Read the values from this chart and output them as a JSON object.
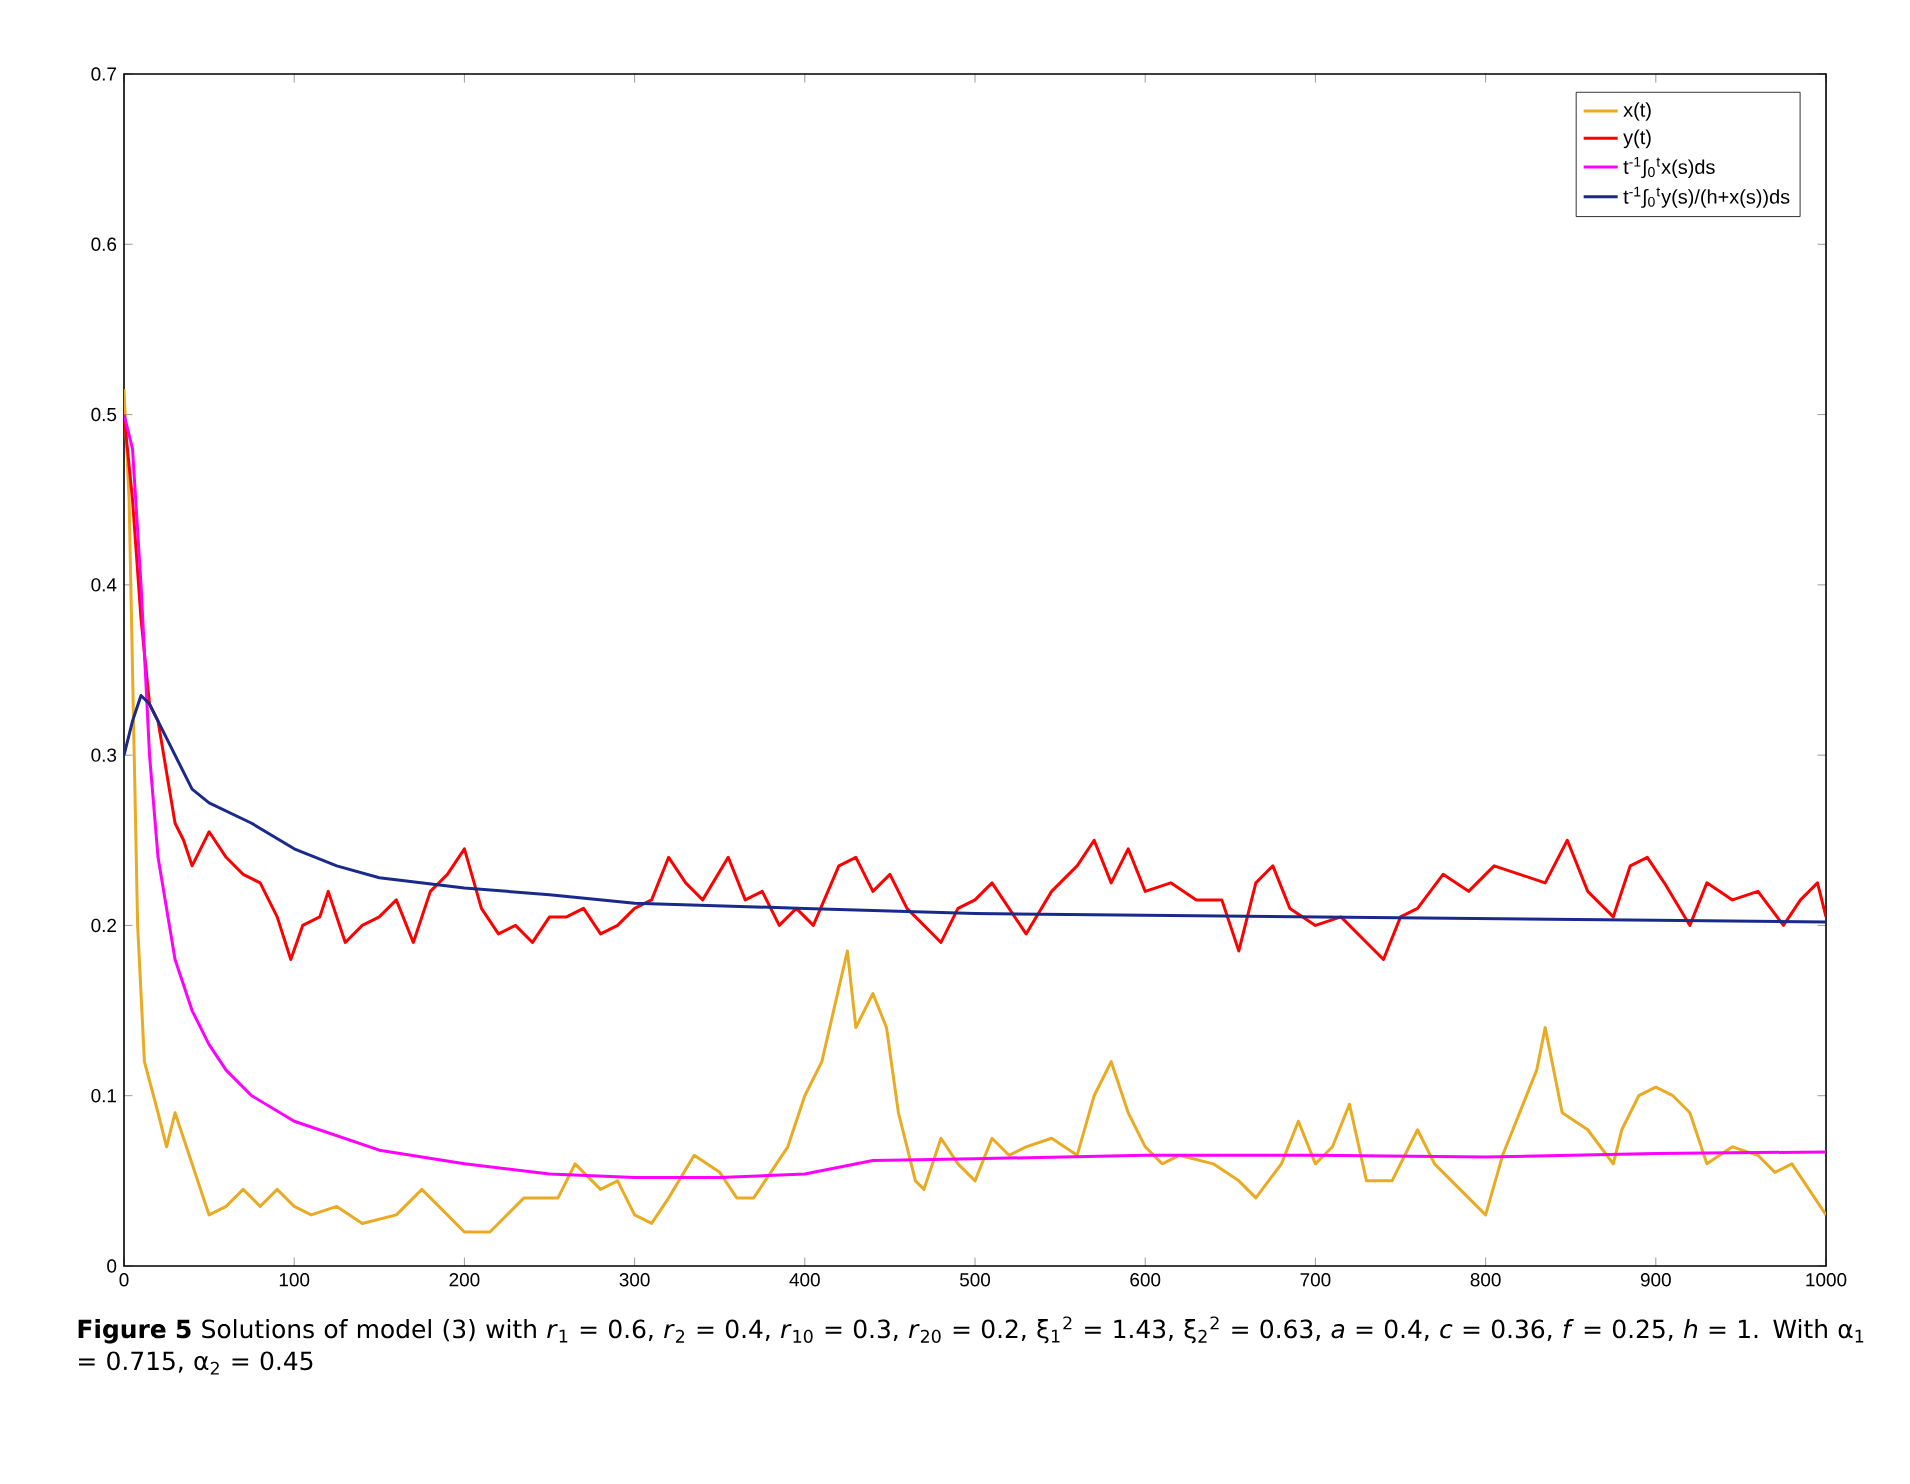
{
  "chart_data": {
    "type": "line",
    "annotations": [
      "**Figure 5**  Solutions of model (3) with *r*$_{1}$ = 0.6, *r*$_{2}$ = 0.4, *r*$_{10}$ = 0.3, *r*$_{20}$ = 0.2, ξ$_{1}$$^{2}$ = 1.43, ξ$_{2}$$^{2}$ = 0.63, *a* = 0.4, *c* = 0.36, *f* = 0.25, *h* = 1. With α$_{1}$ = 0.715, α$_{2}$ = 0.45"
    ],
    "xlim": [
      0,
      1000
    ],
    "ylim": [
      0,
      0.7
    ],
    "xticks": [
      0,
      100,
      200,
      300,
      400,
      500,
      600,
      700,
      800,
      900,
      1000
    ],
    "yticks": [
      0,
      0.1,
      0.2,
      0.3,
      0.4,
      0.5,
      0.6,
      0.7
    ],
    "legend": "top right",
    "series": [
      {
        "name": "x(t)",
        "color": "#eaaa22",
        "x": [
          0,
          3,
          8,
          12,
          20,
          25,
          30,
          40,
          50,
          60,
          70,
          80,
          90,
          100,
          110,
          125,
          140,
          160,
          175,
          190,
          200,
          215,
          235,
          255,
          265,
          280,
          290,
          300,
          310,
          320,
          335,
          350,
          360,
          370,
          380,
          390,
          400,
          410,
          425,
          430,
          440,
          448,
          455,
          465,
          470,
          480,
          490,
          500,
          510,
          520,
          530,
          545,
          560,
          570,
          580,
          590,
          600,
          610,
          620,
          640,
          655,
          665,
          680,
          690,
          700,
          710,
          720,
          730,
          745,
          760,
          770,
          790,
          800,
          810,
          820,
          830,
          835,
          845,
          860,
          875,
          880,
          890,
          900,
          910,
          920,
          930,
          945,
          960,
          970,
          980,
          990,
          1000
        ],
        "values": [
          0.515,
          0.45,
          0.2,
          0.12,
          0.09,
          0.07,
          0.09,
          0.06,
          0.03,
          0.035,
          0.045,
          0.035,
          0.045,
          0.035,
          0.03,
          0.035,
          0.025,
          0.03,
          0.045,
          0.03,
          0.02,
          0.02,
          0.04,
          0.04,
          0.06,
          0.045,
          0.05,
          0.03,
          0.025,
          0.04,
          0.065,
          0.055,
          0.04,
          0.04,
          0.055,
          0.07,
          0.1,
          0.12,
          0.185,
          0.14,
          0.16,
          0.14,
          0.09,
          0.05,
          0.045,
          0.075,
          0.06,
          0.05,
          0.075,
          0.065,
          0.07,
          0.075,
          0.065,
          0.1,
          0.12,
          0.09,
          0.07,
          0.06,
          0.065,
          0.06,
          0.05,
          0.04,
          0.06,
          0.085,
          0.06,
          0.07,
          0.095,
          0.05,
          0.05,
          0.08,
          0.06,
          0.04,
          0.03,
          0.065,
          0.09,
          0.115,
          0.14,
          0.09,
          0.08,
          0.06,
          0.08,
          0.1,
          0.105,
          0.1,
          0.09,
          0.06,
          0.07,
          0.065,
          0.055,
          0.06,
          0.045,
          0.03
        ]
      },
      {
        "name": "y(t)",
        "color": "#ff0000",
        "x": [
          0,
          5,
          10,
          15,
          20,
          25,
          30,
          35,
          40,
          45,
          50,
          60,
          70,
          80,
          90,
          98,
          105,
          115,
          120,
          130,
          140,
          150,
          160,
          170,
          180,
          190,
          200,
          210,
          220,
          230,
          240,
          250,
          260,
          270,
          280,
          290,
          300,
          310,
          320,
          330,
          340,
          355,
          365,
          375,
          385,
          395,
          405,
          420,
          430,
          440,
          450,
          460,
          470,
          480,
          490,
          500,
          510,
          520,
          530,
          545,
          560,
          570,
          580,
          590,
          600,
          615,
          630,
          645,
          655,
          665,
          675,
          685,
          700,
          715,
          730,
          740,
          750,
          760,
          775,
          790,
          805,
          820,
          835,
          848,
          860,
          875,
          885,
          895,
          905,
          920,
          930,
          945,
          960,
          975,
          985,
          995,
          1000
        ],
        "values": [
          0.5,
          0.45,
          0.38,
          0.33,
          0.32,
          0.29,
          0.26,
          0.25,
          0.235,
          0.245,
          0.255,
          0.24,
          0.23,
          0.225,
          0.205,
          0.18,
          0.2,
          0.205,
          0.22,
          0.19,
          0.2,
          0.205,
          0.215,
          0.19,
          0.22,
          0.23,
          0.245,
          0.21,
          0.195,
          0.2,
          0.19,
          0.205,
          0.205,
          0.21,
          0.195,
          0.2,
          0.21,
          0.215,
          0.24,
          0.225,
          0.215,
          0.24,
          0.215,
          0.22,
          0.2,
          0.21,
          0.2,
          0.235,
          0.24,
          0.22,
          0.23,
          0.21,
          0.2,
          0.19,
          0.21,
          0.215,
          0.225,
          0.21,
          0.195,
          0.22,
          0.235,
          0.25,
          0.225,
          0.245,
          0.22,
          0.225,
          0.215,
          0.215,
          0.185,
          0.225,
          0.235,
          0.21,
          0.2,
          0.205,
          0.19,
          0.18,
          0.205,
          0.21,
          0.23,
          0.22,
          0.235,
          0.23,
          0.225,
          0.25,
          0.22,
          0.205,
          0.235,
          0.24,
          0.225,
          0.2,
          0.225,
          0.215,
          0.22,
          0.2,
          0.215,
          0.225,
          0.205
        ]
      },
      {
        "name": "t$^{-1}$∫$_{0}$$^{t}$x(s)ds",
        "color": "#ff00ff",
        "x": [
          0,
          5,
          10,
          15,
          20,
          30,
          40,
          50,
          60,
          75,
          100,
          150,
          200,
          250,
          300,
          350,
          400,
          440,
          500,
          600,
          700,
          800,
          900,
          1000
        ],
        "values": [
          0.5,
          0.48,
          0.4,
          0.3,
          0.24,
          0.18,
          0.15,
          0.13,
          0.115,
          0.1,
          0.085,
          0.068,
          0.06,
          0.054,
          0.052,
          0.052,
          0.054,
          0.062,
          0.063,
          0.065,
          0.065,
          0.064,
          0.066,
          0.067
        ]
      },
      {
        "name": "t$^{-1}$∫$_{0}$$^{t}$y(s)/(h+x(s))ds",
        "color": "#1a2a8a",
        "x": [
          0,
          5,
          10,
          15,
          25,
          40,
          50,
          75,
          100,
          125,
          150,
          200,
          250,
          300,
          400,
          500,
          600,
          700,
          800,
          900,
          1000
        ],
        "values": [
          0.3,
          0.32,
          0.335,
          0.33,
          0.31,
          0.28,
          0.272,
          0.26,
          0.245,
          0.235,
          0.228,
          0.222,
          0.218,
          0.213,
          0.21,
          0.207,
          0.206,
          0.205,
          0.204,
          0.203,
          0.202
        ]
      }
    ]
  }
}
